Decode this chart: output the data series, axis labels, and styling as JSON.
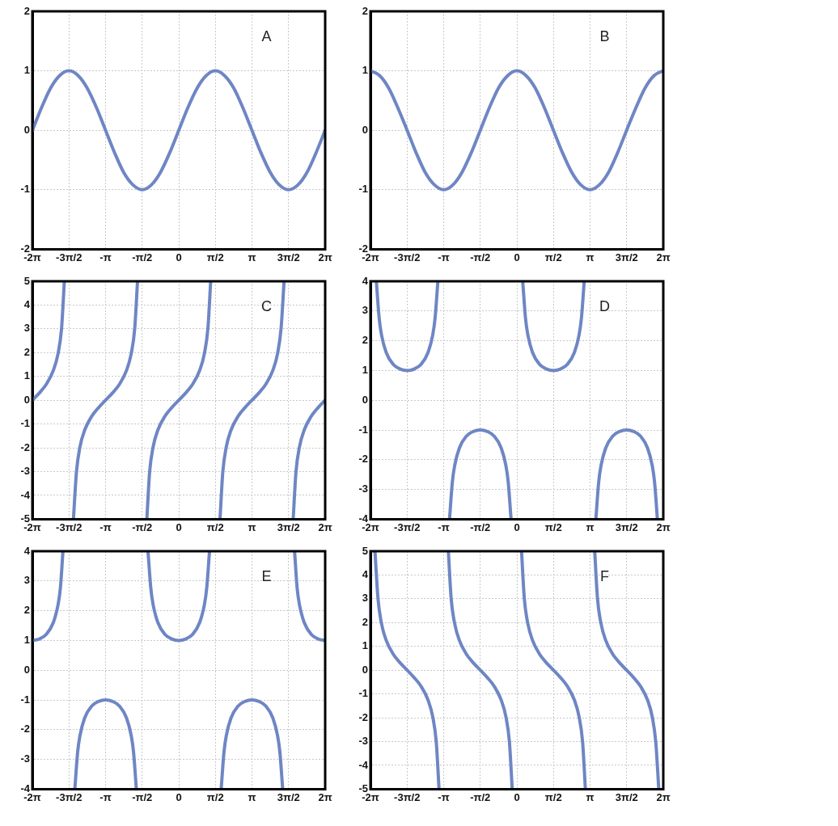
{
  "chart_data": [
    {
      "type": "line",
      "xlim": [
        -6.283,
        6.283
      ],
      "xticks": [
        {
          "value": -6.283,
          "label": "-2π"
        },
        {
          "value": -4.712,
          "label": "-3π/2"
        },
        {
          "value": -3.142,
          "label": "-π"
        },
        {
          "value": -1.571,
          "label": "-π/2"
        },
        {
          "value": 0,
          "label": "0"
        },
        {
          "value": 1.571,
          "label": "π/2"
        },
        {
          "value": 3.142,
          "label": "π"
        },
        {
          "value": 4.712,
          "label": "3π/2"
        },
        {
          "value": 6.283,
          "label": "2π"
        }
      ],
      "ylim": [
        -2,
        2
      ],
      "yticks": [
        -2,
        -1,
        0,
        1,
        2
      ],
      "grid": true,
      "annotations": [
        "A"
      ],
      "series": [
        {
          "color": "#6f86c4",
          "x": [
            -6.28,
            -5.89,
            -5.5,
            -5.11,
            -4.71,
            -4.32,
            -3.93,
            -3.53,
            -3.14,
            -2.75,
            -2.36,
            -1.96,
            -1.57,
            -1.18,
            -0.79,
            -0.39,
            0,
            0.39,
            0.79,
            1.18,
            1.57,
            1.96,
            2.36,
            2.75,
            3.14,
            3.53,
            3.93,
            4.32,
            4.71,
            5.11,
            5.5,
            5.89,
            6.28
          ],
          "values": [
            0,
            0.38,
            0.71,
            0.92,
            1,
            0.92,
            0.71,
            0.38,
            0,
            -0.38,
            -0.71,
            -0.92,
            -1,
            -0.92,
            -0.71,
            -0.38,
            0,
            0.38,
            0.71,
            0.92,
            1,
            0.92,
            0.71,
            0.38,
            0,
            -0.38,
            -0.71,
            -0.92,
            -1,
            -0.92,
            -0.71,
            -0.38,
            0
          ]
        }
      ]
    },
    {
      "type": "line",
      "xlim": [
        -6.283,
        6.283
      ],
      "xticks": [
        {
          "value": -6.283,
          "label": "-2π"
        },
        {
          "value": -4.712,
          "label": "-3π/2"
        },
        {
          "value": -3.142,
          "label": "-π"
        },
        {
          "value": -1.571,
          "label": "-π/2"
        },
        {
          "value": 0,
          "label": "0"
        },
        {
          "value": 1.571,
          "label": "π/2"
        },
        {
          "value": 3.142,
          "label": "π"
        },
        {
          "value": 4.712,
          "label": "3π/2"
        },
        {
          "value": 6.283,
          "label": "2π"
        }
      ],
      "ylim": [
        -2,
        2
      ],
      "yticks": [
        -2,
        -1,
        0,
        1,
        2
      ],
      "grid": true,
      "annotations": [
        "B"
      ],
      "series": [
        {
          "color": "#6f86c4",
          "x": [
            -6.28,
            -5.89,
            -5.5,
            -5.11,
            -4.71,
            -4.32,
            -3.93,
            -3.53,
            -3.14,
            -2.75,
            -2.36,
            -1.96,
            -1.57,
            -1.18,
            -0.79,
            -0.39,
            0,
            0.39,
            0.79,
            1.18,
            1.57,
            1.96,
            2.36,
            2.75,
            3.14,
            3.53,
            3.93,
            4.32,
            4.71,
            5.11,
            5.5,
            5.89,
            6.28
          ],
          "values": [
            1,
            0.92,
            0.71,
            0.38,
            0,
            -0.38,
            -0.71,
            -0.92,
            -1,
            -0.92,
            -0.71,
            -0.38,
            0,
            0.38,
            0.71,
            0.92,
            1,
            0.92,
            0.71,
            0.38,
            0,
            -0.38,
            -0.71,
            -0.92,
            -1,
            -0.92,
            -0.71,
            -0.38,
            0,
            0.38,
            0.71,
            0.92,
            1
          ]
        }
      ]
    },
    {
      "type": "line",
      "xlim": [
        -6.283,
        6.283
      ],
      "xticks": [
        {
          "value": -6.283,
          "label": "-2π"
        },
        {
          "value": -4.712,
          "label": "-3π/2"
        },
        {
          "value": -3.142,
          "label": "-π"
        },
        {
          "value": -1.571,
          "label": "-π/2"
        },
        {
          "value": 0,
          "label": "0"
        },
        {
          "value": 1.571,
          "label": "π/2"
        },
        {
          "value": 3.142,
          "label": "π"
        },
        {
          "value": 4.712,
          "label": "3π/2"
        },
        {
          "value": 6.283,
          "label": "2π"
        }
      ],
      "ylim": [
        -5,
        5
      ],
      "yticks": [
        -5,
        -4,
        -3,
        -2,
        -1,
        0,
        1,
        2,
        3,
        4,
        5
      ],
      "grid": true,
      "annotations": [
        "C"
      ],
      "series": [
        {
          "color": "#6f86c4",
          "x": [
            -6.28,
            -5.98,
            -5.68,
            -5.38,
            -5.18,
            -5.03,
            -4.91,
            -4.71,
            -4.52,
            -4.39,
            -4.24,
            -4.04,
            -3.74,
            -3.44,
            -3.14,
            -2.84,
            -2.54,
            -2.24,
            -2.04,
            -1.89,
            -1.77,
            -1.57,
            -1.37,
            -1.25,
            -1.1,
            -0.9,
            -0.6,
            -0.3,
            0,
            0.3,
            0.6,
            0.9,
            1.1,
            1.25,
            1.37,
            1.57,
            1.77,
            1.89,
            2.04,
            2.24,
            2.54,
            2.84,
            3.14,
            3.44,
            3.74,
            4.04,
            4.24,
            4.39,
            4.52,
            4.71,
            4.91,
            5.03,
            5.18,
            5.38,
            5.68,
            5.98,
            6.28
          ],
          "values": [
            0,
            0.31,
            0.68,
            1.26,
            1.96,
            3.01,
            5,
            null,
            -5,
            -3.01,
            -1.96,
            -1.26,
            -0.68,
            -0.31,
            0,
            0.31,
            0.68,
            1.26,
            1.96,
            3.01,
            5,
            null,
            -5,
            -3.01,
            -1.96,
            -1.26,
            -0.68,
            -0.31,
            0,
            0.31,
            0.68,
            1.26,
            1.96,
            3.01,
            5,
            null,
            -5,
            -3.01,
            -1.96,
            -1.26,
            -0.68,
            -0.31,
            0,
            0.31,
            0.68,
            1.26,
            1.96,
            3.01,
            5,
            null,
            -5,
            -3.01,
            -1.96,
            -1.26,
            -0.68,
            -0.31,
            0
          ]
        }
      ]
    },
    {
      "type": "line",
      "xlim": [
        -6.283,
        6.283
      ],
      "xticks": [
        {
          "value": -6.283,
          "label": "-2π"
        },
        {
          "value": -4.712,
          "label": "-3π/2"
        },
        {
          "value": -3.142,
          "label": "-π"
        },
        {
          "value": -1.571,
          "label": "-π/2"
        },
        {
          "value": 0,
          "label": "0"
        },
        {
          "value": 1.571,
          "label": "π/2"
        },
        {
          "value": 3.142,
          "label": "π"
        },
        {
          "value": 4.712,
          "label": "3π/2"
        },
        {
          "value": 6.283,
          "label": "2π"
        }
      ],
      "ylim": [
        -4,
        4
      ],
      "yticks": [
        -4,
        -3,
        -2,
        -1,
        0,
        1,
        2,
        3,
        4
      ],
      "grid": true,
      "annotations": [
        "D"
      ],
      "series": [
        {
          "color": "#6f86c4",
          "x": [
            -6.03,
            -5.91,
            -5.81,
            -5.61,
            -5.31,
            -5.01,
            -4.71,
            -4.41,
            -4.11,
            -3.81,
            -3.61,
            -3.51,
            -3.39,
            -3.14,
            -2.89,
            -2.77,
            -2.67,
            -2.47,
            -2.17,
            -1.87,
            -1.57,
            -1.27,
            -0.97,
            -0.67,
            -0.47,
            -0.37,
            -0.25,
            0,
            0.25,
            0.37,
            0.47,
            0.67,
            0.97,
            1.27,
            1.57,
            1.87,
            2.17,
            2.47,
            2.67,
            2.77,
            2.89,
            3.14,
            3.39,
            3.51,
            3.61,
            3.81,
            4.11,
            4.41,
            4.71,
            5.01,
            5.31,
            5.61,
            5.81,
            5.91,
            6.03
          ],
          "values": [
            4,
            2.76,
            2.2,
            1.61,
            1.21,
            1.05,
            1,
            1.05,
            1.21,
            1.61,
            2.2,
            2.76,
            4,
            null,
            -4,
            -2.76,
            -2.2,
            -1.61,
            -1.21,
            -1.05,
            -1,
            -1.05,
            -1.21,
            -1.61,
            -2.2,
            -2.76,
            -4,
            null,
            4,
            2.76,
            2.2,
            1.61,
            1.21,
            1.05,
            1,
            1.05,
            1.21,
            1.61,
            2.2,
            2.76,
            4,
            null,
            -4,
            -2.76,
            -2.2,
            -1.61,
            -1.21,
            -1.05,
            -1,
            -1.05,
            -1.21,
            -1.61,
            -2.2,
            -2.76,
            -4
          ]
        }
      ]
    },
    {
      "type": "line",
      "xlim": [
        -6.283,
        6.283
      ],
      "xticks": [
        {
          "value": -6.283,
          "label": "-2π"
        },
        {
          "value": -4.712,
          "label": "-3π/2"
        },
        {
          "value": -3.142,
          "label": "-π"
        },
        {
          "value": -1.571,
          "label": "-π/2"
        },
        {
          "value": 0,
          "label": "0"
        },
        {
          "value": 1.571,
          "label": "π/2"
        },
        {
          "value": 3.142,
          "label": "π"
        },
        {
          "value": 4.712,
          "label": "3π/2"
        },
        {
          "value": 6.283,
          "label": "2π"
        }
      ],
      "ylim": [
        -4,
        4
      ],
      "yticks": [
        -4,
        -3,
        -2,
        -1,
        0,
        1,
        2,
        3,
        4
      ],
      "grid": true,
      "annotations": [
        "E"
      ],
      "series": [
        {
          "color": "#6f86c4",
          "x": [
            -6.28,
            -5.98,
            -5.68,
            -5.38,
            -5.18,
            -5.08,
            -4.97,
            -4.71,
            -4.46,
            -4.34,
            -4.24,
            -4.04,
            -3.74,
            -3.44,
            -3.14,
            -2.84,
            -2.54,
            -2.24,
            -2.04,
            -1.94,
            -1.82,
            -1.57,
            -1.32,
            -1.2,
            -1.1,
            -0.9,
            -0.6,
            -0.3,
            0,
            0.3,
            0.6,
            0.9,
            1.1,
            1.2,
            1.32,
            1.57,
            1.82,
            1.94,
            2.04,
            2.24,
            2.54,
            2.84,
            3.14,
            3.44,
            3.74,
            4.04,
            4.24,
            4.34,
            4.46,
            4.71,
            4.97,
            5.08,
            5.18,
            5.38,
            5.68,
            5.98,
            6.28
          ],
          "values": [
            1,
            1.05,
            1.21,
            1.61,
            2.2,
            2.76,
            4,
            null,
            -4,
            -2.76,
            -2.2,
            -1.61,
            -1.21,
            -1.05,
            -1,
            -1.05,
            -1.21,
            -1.61,
            -2.2,
            -2.76,
            -4,
            null,
            4,
            2.76,
            2.2,
            1.61,
            1.21,
            1.05,
            1,
            1.05,
            1.21,
            1.61,
            2.2,
            2.76,
            4,
            null,
            -4,
            -2.76,
            -2.2,
            -1.61,
            -1.21,
            -1.05,
            -1,
            -1.05,
            -1.21,
            -1.61,
            -2.2,
            -2.76,
            -4,
            null,
            4,
            2.76,
            2.2,
            1.61,
            1.21,
            1.05,
            1
          ]
        }
      ]
    },
    {
      "type": "line",
      "xlim": [
        -6.283,
        6.283
      ],
      "xticks": [
        {
          "value": -6.283,
          "label": "-2π"
        },
        {
          "value": -4.712,
          "label": "-3π/2"
        },
        {
          "value": -3.142,
          "label": "-π"
        },
        {
          "value": -1.571,
          "label": "-π/2"
        },
        {
          "value": 0,
          "label": "0"
        },
        {
          "value": 1.571,
          "label": "π/2"
        },
        {
          "value": 3.142,
          "label": "π"
        },
        {
          "value": 4.712,
          "label": "3π/2"
        },
        {
          "value": 6.283,
          "label": "2π"
        }
      ],
      "ylim": [
        -5,
        5
      ],
      "yticks": [
        -5,
        -4,
        -3,
        -2,
        -1,
        0,
        1,
        2,
        3,
        4,
        5
      ],
      "grid": true,
      "annotations": [
        "F"
      ],
      "series": [
        {
          "color": "#6f86c4",
          "x": [
            -6.09,
            -5.96,
            -5.81,
            -5.61,
            -5.31,
            -5.01,
            -4.71,
            -4.41,
            -4.11,
            -3.81,
            -3.61,
            -3.46,
            -3.34,
            -3.14,
            -2.94,
            -2.82,
            -2.67,
            -2.47,
            -2.17,
            -1.87,
            -1.57,
            -1.27,
            -0.97,
            -0.67,
            -0.47,
            -0.32,
            -0.2,
            0,
            0.2,
            0.32,
            0.47,
            0.67,
            0.97,
            1.27,
            1.57,
            1.87,
            2.17,
            2.47,
            2.67,
            2.82,
            2.94,
            3.14,
            3.34,
            3.46,
            3.61,
            3.81,
            4.11,
            4.41,
            4.71,
            5.01,
            5.31,
            5.61,
            5.81,
            5.96,
            6.09
          ],
          "values": [
            5,
            3.01,
            1.96,
            1.26,
            0.68,
            0.31,
            0,
            -0.31,
            -0.68,
            -1.26,
            -1.96,
            -3.01,
            -5,
            null,
            5,
            3.01,
            1.96,
            1.26,
            0.68,
            0.31,
            0,
            -0.31,
            -0.68,
            -1.26,
            -1.96,
            -3.01,
            -5,
            null,
            5,
            3.01,
            1.96,
            1.26,
            0.68,
            0.31,
            0,
            -0.31,
            -0.68,
            -1.26,
            -1.96,
            -3.01,
            -5,
            null,
            5,
            3.01,
            1.96,
            1.26,
            0.68,
            0.31,
            0,
            -0.31,
            -0.68,
            -1.26,
            -1.96,
            -3.01,
            -5
          ]
        }
      ]
    }
  ]
}
